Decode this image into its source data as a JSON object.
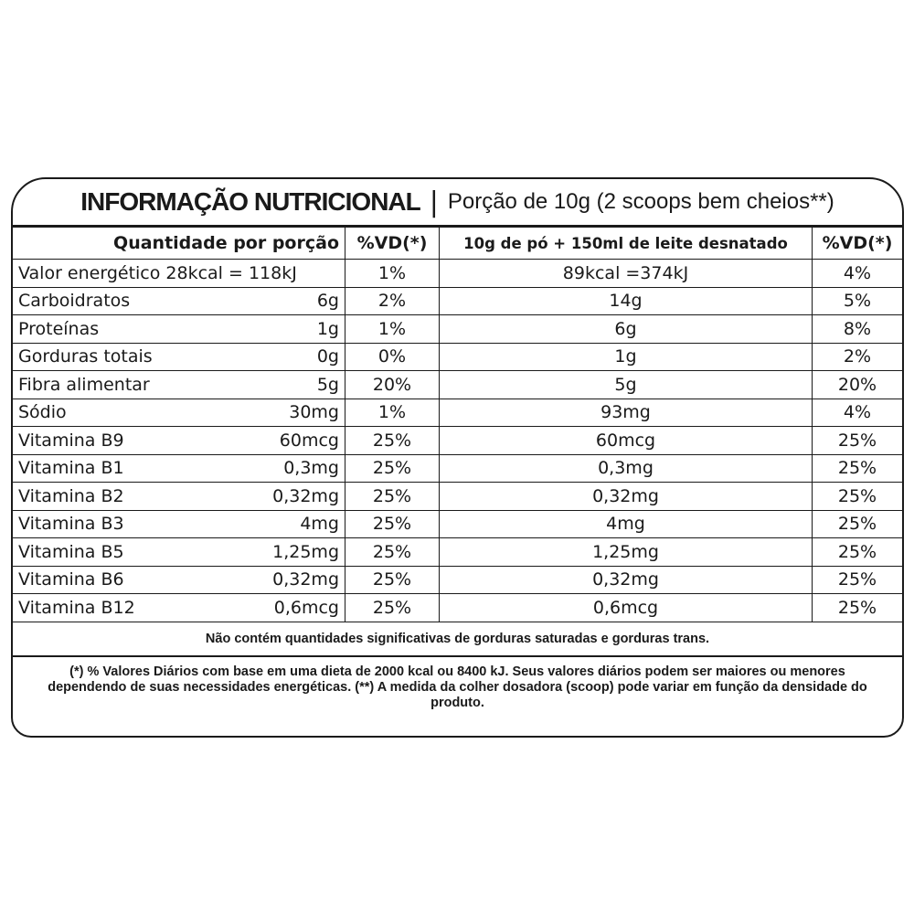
{
  "title": {
    "main": "INFORMAÇÃO NUTRICIONAL",
    "separator": "|",
    "portion": "Porção de 10g (2 scoops bem cheios**)"
  },
  "header": {
    "col1": "Quantidade por porção",
    "col2": "%VD(*)",
    "col3": "10g de pó + 150ml de leite desnatado",
    "col4": "%VD(*)"
  },
  "rows": [
    {
      "name": "Valor energético 28kcal = 118kJ",
      "amount": "",
      "vd": "1%",
      "mix": "89kcal =374kJ",
      "mix_vd": "4%"
    },
    {
      "name": "Carboidratos",
      "amount": "6g",
      "vd": "2%",
      "mix": "14g",
      "mix_vd": "5%"
    },
    {
      "name": "Proteínas",
      "amount": "1g",
      "vd": "1%",
      "mix": "6g",
      "mix_vd": "8%"
    },
    {
      "name": "Gorduras totais",
      "amount": "0g",
      "vd": "0%",
      "mix": "1g",
      "mix_vd": "2%"
    },
    {
      "name": "Fibra alimentar",
      "amount": "5g",
      "vd": "20%",
      "mix": "5g",
      "mix_vd": "20%"
    },
    {
      "name": "Sódio",
      "amount": "30mg",
      "vd": "1%",
      "mix": "93mg",
      "mix_vd": "4%"
    },
    {
      "name": "Vitamina B9",
      "amount": "60mcg",
      "vd": "25%",
      "mix": "60mcg",
      "mix_vd": "25%"
    },
    {
      "name": "Vitamina B1",
      "amount": "0,3mg",
      "vd": "25%",
      "mix": "0,3mg",
      "mix_vd": "25%"
    },
    {
      "name": "Vitamina B2",
      "amount": "0,32mg",
      "vd": "25%",
      "mix": "0,32mg",
      "mix_vd": "25%"
    },
    {
      "name": "Vitamina B3",
      "amount": "4mg",
      "vd": "25%",
      "mix": "4mg",
      "mix_vd": "25%"
    },
    {
      "name": "Vitamina B5",
      "amount": "1,25mg",
      "vd": "25%",
      "mix": "1,25mg",
      "mix_vd": "25%"
    },
    {
      "name": "Vitamina B6",
      "amount": "0,32mg",
      "vd": "25%",
      "mix": "0,32mg",
      "mix_vd": "25%"
    },
    {
      "name": "Vitamina B12",
      "amount": "0,6mcg",
      "vd": "25%",
      "mix": "0,6mcg",
      "mix_vd": "25%"
    }
  ],
  "notes": {
    "fats": "Não contém quantidades significativas de gorduras saturadas e gorduras trans.",
    "footnote": "(*) % Valores Diários com base em uma dieta de 2000 kcal ou 8400 kJ. Seus valores diários podem ser maiores ou menores dependendo de suas necessidades energéticas.  (**) A medida da colher dosadora (scoop) pode variar em função da densidade do produto."
  }
}
